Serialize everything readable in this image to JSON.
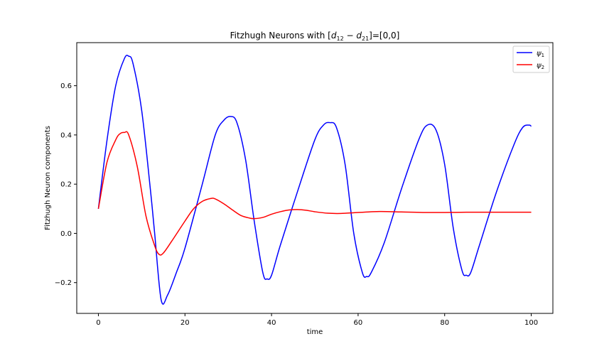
{
  "chart_data": {
    "type": "line",
    "title_prefix": "Fitzhugh Neurons with ",
    "title_math": "[d12 − d21]",
    "title_suffix": "=[0,0]",
    "xlabel": "time",
    "ylabel": "Fitzhugh Neuron components",
    "xlim": [
      -5,
      105
    ],
    "ylim": [
      -0.325,
      0.775
    ],
    "x_ticks": [
      0,
      20,
      40,
      60,
      80,
      100
    ],
    "y_ticks": [
      -0.2,
      0.0,
      0.2,
      0.4,
      0.6
    ],
    "x_tick_labels": [
      "0",
      "20",
      "40",
      "60",
      "80",
      "100"
    ],
    "y_tick_labels": [
      "−0.2",
      "0.0",
      "0.2",
      "0.4",
      "0.6"
    ],
    "grid": false,
    "legend_position": "top-right",
    "series": [
      {
        "name": "ψ1",
        "color": "#0000ff",
        "x": [
          0,
          2,
          4,
          6,
          7,
          8,
          10,
          12,
          13,
          14.5,
          16,
          18,
          20,
          24,
          27,
          29,
          30.5,
          32,
          34,
          36,
          38,
          39,
          40,
          42,
          46,
          50,
          52,
          53.5,
          55,
          57,
          59,
          61,
          62,
          63,
          66,
          70,
          74,
          76,
          78,
          80,
          82,
          84,
          85,
          86,
          88,
          92,
          96,
          98,
          99.5,
          100
        ],
        "y": [
          0.1,
          0.38,
          0.6,
          0.71,
          0.72,
          0.69,
          0.5,
          0.18,
          0.0,
          -0.27,
          -0.25,
          -0.16,
          -0.06,
          0.2,
          0.4,
          0.46,
          0.475,
          0.45,
          0.3,
          0.05,
          -0.16,
          -0.185,
          -0.17,
          -0.05,
          0.17,
          0.38,
          0.44,
          0.45,
          0.43,
          0.28,
          0.0,
          -0.16,
          -0.175,
          -0.16,
          -0.04,
          0.18,
          0.38,
          0.44,
          0.42,
          0.28,
          0.02,
          -0.15,
          -0.17,
          -0.16,
          -0.05,
          0.17,
          0.36,
          0.43,
          0.44,
          0.435
        ]
      },
      {
        "name": "ψ2",
        "color": "#ff0000",
        "x": [
          0,
          2,
          4,
          5,
          6,
          7,
          9,
          11,
          13,
          14,
          15,
          17,
          20,
          22,
          24,
          26,
          27,
          29,
          31,
          33,
          35,
          36,
          38,
          40,
          42,
          44,
          46,
          48,
          50,
          53,
          56,
          60,
          65,
          70,
          75,
          80,
          85,
          90,
          95,
          100
        ],
        "y": [
          0.1,
          0.29,
          0.38,
          0.405,
          0.41,
          0.4,
          0.27,
          0.07,
          -0.05,
          -0.085,
          -0.08,
          -0.03,
          0.05,
          0.1,
          0.13,
          0.142,
          0.14,
          0.12,
          0.095,
          0.072,
          0.062,
          0.06,
          0.065,
          0.078,
          0.088,
          0.095,
          0.097,
          0.094,
          0.088,
          0.082,
          0.081,
          0.085,
          0.089,
          0.087,
          0.085,
          0.085,
          0.086,
          0.086,
          0.086,
          0.086
        ]
      }
    ]
  }
}
